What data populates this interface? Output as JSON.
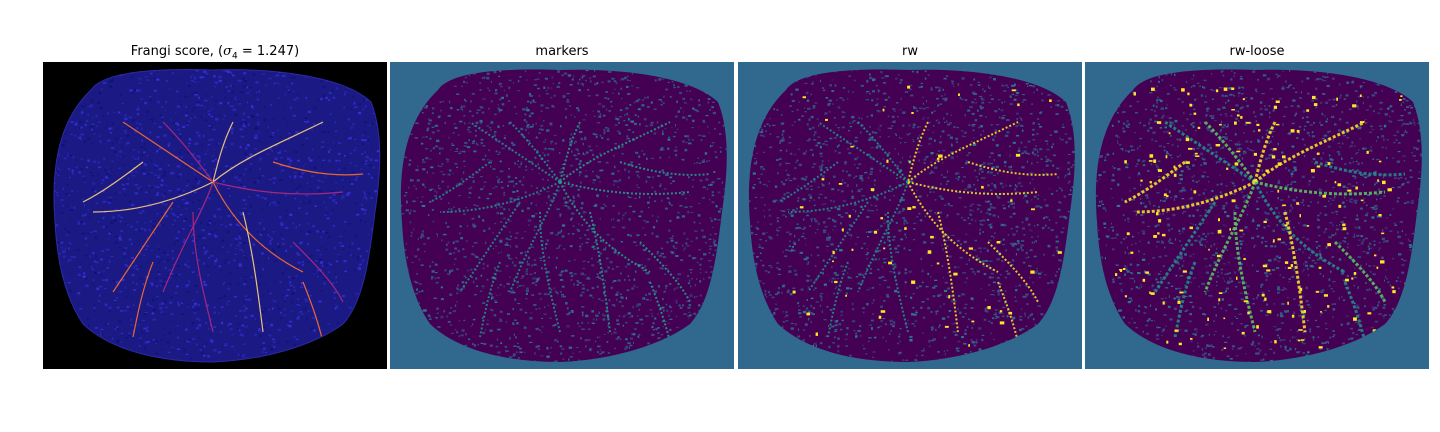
{
  "panels": [
    {
      "title_main": "Frangi score, (",
      "title_symbol": "σ",
      "title_sub": "4",
      "title_rest": " = 1.247)",
      "colormap": "gnuplot2",
      "background": "#000000",
      "tissue_color": "#1b1a85",
      "speckle_colors": [
        "#2c2cc4",
        "#3a2fe0",
        "#10107a"
      ],
      "vessel_colors": [
        "#ff6f2a",
        "#ffd27a",
        "#b5297a"
      ]
    },
    {
      "title": "markers",
      "colormap": "viridis",
      "background": "#31688e",
      "tissue_color": "#440154",
      "speckle_colors": [
        "#31688e",
        "#3b528b",
        "#2c7a8e"
      ],
      "vessel_colors": [
        "#21918c",
        "#25a18b"
      ]
    },
    {
      "title": "rw",
      "colormap": "viridis",
      "background": "#31688e",
      "tissue_color": "#440154",
      "speckle_colors": [
        "#31688e",
        "#3b528b",
        "#2c7a8e"
      ],
      "vessel_colors": [
        "#21918c",
        "#fde725"
      ]
    },
    {
      "title": "rw-loose",
      "colormap": "viridis",
      "background": "#31688e",
      "tissue_color": "#440154",
      "speckle_colors": [
        "#31688e",
        "#3b528b",
        "#2c7a8e"
      ],
      "vessel_colors": [
        "#21918c",
        "#fde725",
        "#5ec962"
      ]
    }
  ]
}
